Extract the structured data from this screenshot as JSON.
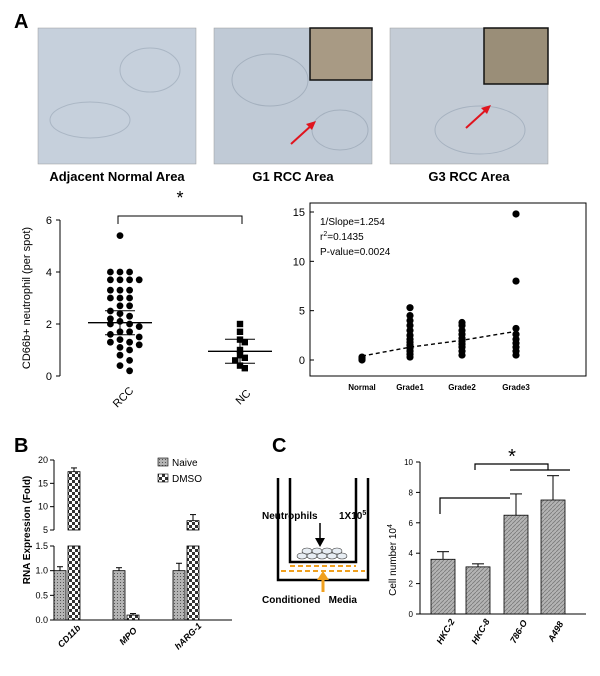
{
  "panel_labels": {
    "a": "A",
    "b": "B",
    "c": "C"
  },
  "micrographs": [
    {
      "caption": "Adjacent Normal Area"
    },
    {
      "caption": "G1 RCC Area"
    },
    {
      "caption": "G3 RCC Area"
    }
  ],
  "colors": {
    "arrow": "#e0141e",
    "tissue": "#c3cdd9",
    "orange": "#f0a01e",
    "bar_fill": "#b4b4b4"
  },
  "panel_c_diagram": {
    "neutrophils_label": "Neutrophils",
    "count_label": "1X10",
    "count_exponent": "5",
    "media_label": "Conditioned   Media"
  },
  "chart_data": [
    {
      "type": "scatter",
      "ylabel": "CD66b+ neutrophil (per spot)",
      "categories": [
        "RCC",
        "NC"
      ],
      "ylim": [
        0,
        6
      ],
      "yticks": [
        "0",
        "2",
        "4",
        "6"
      ],
      "significance": "*",
      "series": [
        {
          "values": [
            5.4,
            4.0,
            4.0,
            4.0,
            3.7,
            3.7,
            3.7,
            3.7,
            3.3,
            3.3,
            3.3,
            3.0,
            3.0,
            3.0,
            2.7,
            2.7,
            2.5,
            2.4,
            2.3,
            2.2,
            2.1,
            2.0,
            2.0,
            1.9,
            1.7,
            1.7,
            1.6,
            1.5,
            1.4,
            1.3,
            1.3,
            1.2,
            1.1,
            1.0,
            0.8,
            0.6,
            0.4,
            0.2
          ]
        },
        {
          "values": [
            2.0,
            1.7,
            1.4,
            1.3,
            1.0,
            0.8,
            0.7,
            0.6,
            0.4,
            0.3
          ]
        }
      ],
      "means": [
        2.05,
        0.95
      ]
    },
    {
      "type": "scatter",
      "categories": [
        "Normal",
        "Grade1",
        "Grade2",
        "Grade3"
      ],
      "ylim": [
        0,
        15
      ],
      "yticks": [
        "0",
        "5",
        "10",
        "15"
      ],
      "annotation": {
        "slope": "1/Slope=1.254",
        "r_prefix": "r",
        "r_sup": "2",
        "r_value": "=0.1435",
        "pvalue": "P-value=0.0024"
      },
      "series": [
        {
          "values": [
            0.0,
            0.1,
            0.2,
            0.3
          ]
        },
        {
          "values": [
            0.3,
            0.6,
            0.9,
            1.2,
            1.5,
            1.8,
            2.1,
            2.5,
            3.0,
            3.5,
            4.0,
            4.5,
            5.3
          ]
        },
        {
          "values": [
            0.5,
            0.9,
            1.3,
            1.6,
            1.9,
            2.2,
            2.6,
            3.0,
            3.5,
            3.8
          ]
        },
        {
          "values": [
            0.5,
            0.9,
            1.3,
            1.7,
            2.1,
            2.6,
            3.2,
            8.0,
            14.8
          ]
        }
      ],
      "trend": [
        0.4,
        1.3,
        2.0,
        2.9
      ]
    },
    {
      "type": "bar",
      "ylabel": "RNA Expression (Fold)",
      "categories": [
        "CD11b",
        "MPO",
        "hARG-1"
      ],
      "yticks_lower": [
        "0.0",
        "0.5",
        "1.0",
        "1.5"
      ],
      "yticks_upper": [
        "5",
        "10",
        "15",
        "20"
      ],
      "series": [
        {
          "name": "Naive",
          "values": [
            1.0,
            1.0,
            1.0
          ],
          "errors": [
            0.08,
            0.06,
            0.15
          ]
        },
        {
          "name": "DMSO",
          "values": [
            17.5,
            0.1,
            7.0
          ],
          "errors": [
            0.8,
            0.03,
            1.3
          ]
        }
      ]
    },
    {
      "type": "bar",
      "ylabel": "Cell number 10",
      "ylabel_sup": "4",
      "categories": [
        "HKC-2",
        "HKC-8",
        "786-O",
        "A498"
      ],
      "ylim": [
        0,
        10
      ],
      "yticks": [
        "0",
        "2",
        "4",
        "6",
        "8",
        "10"
      ],
      "significance": "*",
      "values": [
        3.6,
        3.1,
        6.5,
        7.5
      ],
      "errors": [
        0.5,
        0.2,
        1.4,
        1.6
      ]
    }
  ]
}
